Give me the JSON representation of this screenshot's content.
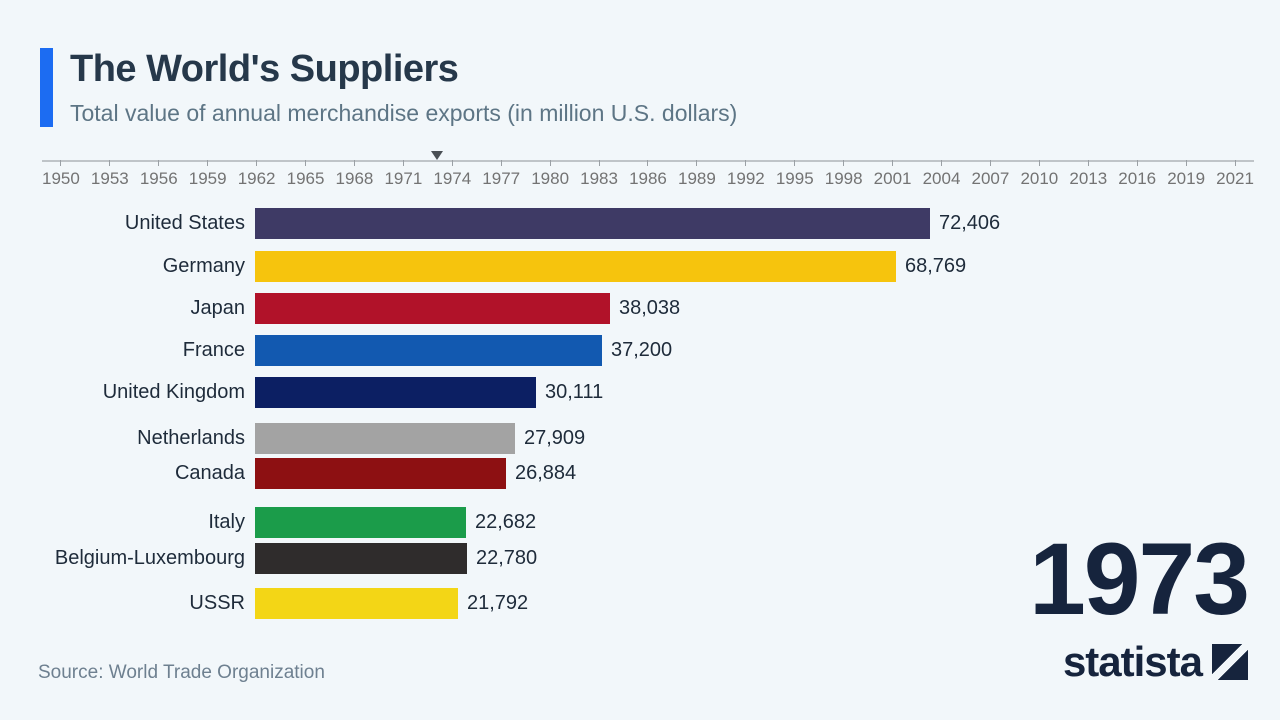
{
  "header": {
    "title": "The World's Suppliers",
    "subtitle": "Total value of annual merchandise exports (in million U.S. dollars)"
  },
  "timeline": {
    "years": [
      "1950",
      "1953",
      "1956",
      "1959",
      "1962",
      "1965",
      "1968",
      "1971",
      "1974",
      "1977",
      "1980",
      "1983",
      "1986",
      "1989",
      "1992",
      "1995",
      "1998",
      "2001",
      "2004",
      "2007",
      "2010",
      "2013",
      "2016",
      "2019",
      "2021"
    ],
    "pointer_year": "1973",
    "pointer_pct": 32.6
  },
  "chart_data": {
    "type": "bar",
    "orientation": "horizontal",
    "title": "The World's Suppliers",
    "subtitle": "Total value of annual merchandise exports (in million U.S. dollars)",
    "unit": "million U.S. dollars",
    "year": "1973",
    "categories": [
      "United States",
      "Germany",
      "Japan",
      "France",
      "United Kingdom",
      "Netherlands",
      "Canada",
      "Italy",
      "Belgium-Luxembourg",
      "USSR"
    ],
    "values": [
      72406,
      68769,
      38038,
      37200,
      30111,
      27909,
      26884,
      22682,
      22780,
      21792
    ],
    "value_labels": [
      "72,406",
      "68,769",
      "38,038",
      "37,200",
      "30,111",
      "27,909",
      "26,884",
      "22,682",
      "22,780",
      "21,792"
    ],
    "bar_colors": [
      "#3e3a65",
      "#f6c40d",
      "#b11229",
      "#1259b0",
      "#0c1f63",
      "#a3a3a3",
      "#8d1012",
      "#1b9c4a",
      "#2f2c2c",
      "#f3d616"
    ],
    "xlim": [
      0,
      77000
    ],
    "legend": "none",
    "grid": "off"
  },
  "year_display": "1973",
  "source": "Source: World Trade Organization",
  "logo": {
    "text": "statista"
  },
  "colors": {
    "background": "#f2f7fa",
    "accent": "#1c6cf2",
    "title_text": "#26384a",
    "subtitle_text": "#5d7585",
    "axis_text": "#737373",
    "label_text": "#1e2b3a",
    "year_text": "#16243d"
  }
}
